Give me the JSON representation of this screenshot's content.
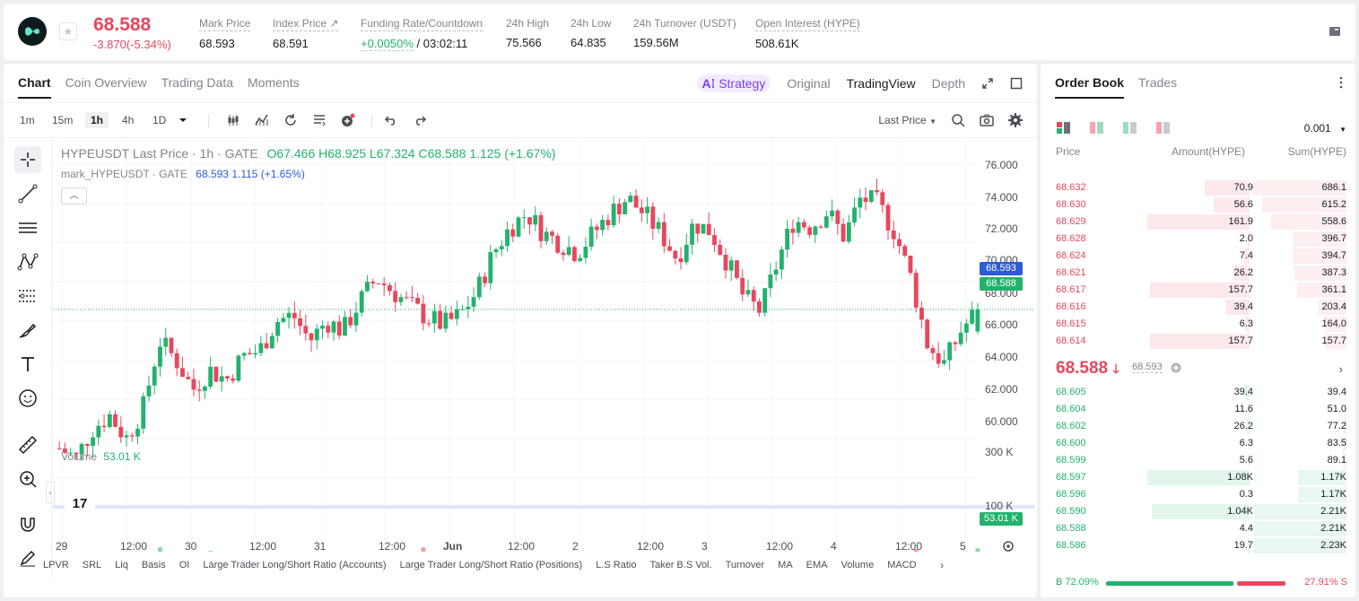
{
  "header": {
    "last_price": "68.588",
    "change": "-3.870(-5.34%)",
    "stats": [
      {
        "label": "Mark Price",
        "value": "68.593"
      },
      {
        "label": "Index Price ↗",
        "value": "68.591"
      },
      {
        "label": "Funding Rate/Countdown",
        "value": "+0.0050%",
        "value2": "/ 03:02:11"
      },
      {
        "label": "24h High",
        "value": "75.566"
      },
      {
        "label": "24h Low",
        "value": "64.835"
      },
      {
        "label": "24h Turnover (USDT)",
        "value": "159.56M"
      },
      {
        "label": "Open Interest (HYPE)",
        "value": "508.61K"
      }
    ]
  },
  "chart_tabs": [
    "Chart",
    "Coin Overview",
    "Trading Data",
    "Moments"
  ],
  "view_tabs": {
    "strategy": "Strategy",
    "original": "Original",
    "tradingview": "TradingView",
    "depth": "Depth"
  },
  "timeframes": [
    "1m",
    "15m",
    "1h",
    "4h",
    "1D"
  ],
  "active_timeframe": "1h",
  "price_type": "Last Price",
  "legend": {
    "symbol": "HYPEUSDT Last Price · 1h · GATE",
    "o": "O67.466",
    "h": "H68.925",
    "l": "L67.324",
    "c": "C68.588",
    "change": "1.125 (+1.67%)",
    "mark_label": "mark_HYPEUSDT · GATE",
    "mark_value": "68.593",
    "mark_change": "1.115 (+1.65%)"
  },
  "volume_legend": {
    "label": "Volume",
    "value": "53.01 K"
  },
  "y_axis": [
    "76.000",
    "74.000",
    "72.000",
    "70.000",
    "68.000",
    "66.000",
    "64.000",
    "62.000",
    "60.000"
  ],
  "vol_axis": [
    "300 K",
    "100 K"
  ],
  "price_tags": {
    "mark": "68.593",
    "last": "68.588",
    "volume": "53.01 K"
  },
  "x_axis": [
    "29",
    "12:00",
    "30",
    "12:00",
    "31",
    "12:00",
    "Jun",
    "12:00",
    "2",
    "12:00",
    "3",
    "12:00",
    "4",
    "12:00",
    "5"
  ],
  "tv_logo": "17",
  "indicators": [
    "LPVR",
    "SRL",
    "Liq",
    "Basis",
    "OI",
    "Large Trader Long/Short Ratio (Accounts)",
    "Large Trader Long/Short Ratio (Positions)",
    "L.S Ratio",
    "Taker B.S Vol.",
    "Turnover",
    "MA",
    "EMA",
    "Volume",
    "MACD"
  ],
  "colors": {
    "up": "#23b26d",
    "down": "#e8475d",
    "mark": "#2d5bd7"
  },
  "chart_data": {
    "type": "candlestick",
    "title": "HYPEUSDT Last Price · 1h · GATE",
    "ylim": [
      58.6,
      77.3
    ],
    "x_labels": [
      "29",
      "12:00",
      "30",
      "12:00",
      "31",
      "12:00",
      "Jun",
      "12:00",
      "2",
      "12:00",
      "3",
      "12:00",
      "4",
      "12:00",
      "5"
    ],
    "close_path": [
      61.5,
      61.0,
      62.5,
      63.2,
      62.0,
      63.5,
      67.0,
      66.0,
      64.5,
      65.5,
      65.0,
      66.2,
      66.5,
      68.0,
      68.3,
      67.0,
      68.0,
      67.5,
      69.0,
      70.2,
      69.5,
      68.8,
      68.2,
      67.8,
      68.3,
      69.5,
      71.5,
      72.8,
      73.5,
      72.5,
      72.0,
      71.5,
      72.5,
      73.5,
      74.3,
      73.5,
      72.5,
      71.2,
      73.0,
      72.6,
      71.0,
      69.2,
      68.5,
      71.0,
      73.2,
      72.8,
      73.6,
      72.3,
      74.3,
      74.0,
      72.6,
      70.2,
      66.8,
      65.8,
      67.5,
      68.588
    ],
    "last_ohlc": {
      "open": 67.466,
      "high": 68.925,
      "low": 67.324,
      "close": 68.588
    },
    "mark_price": 68.593,
    "volume_max_label": "300 K",
    "last_volume": "53.01 K"
  },
  "orderbook": {
    "tabs": [
      "Order Book",
      "Trades"
    ],
    "precision": "0.001",
    "headers": {
      "price": "Price",
      "amount": "Amount(HYPE)",
      "sum": "Sum(HYPE)"
    },
    "asks": [
      {
        "price": "68.632",
        "amount": "70.9",
        "sum": "686.1",
        "a": 0.44,
        "s": 1.0
      },
      {
        "price": "68.630",
        "amount": "56.6",
        "sum": "615.2",
        "a": 0.35,
        "s": 0.9
      },
      {
        "price": "68.629",
        "amount": "161.9",
        "sum": "558.6",
        "a": 1.0,
        "s": 0.81
      },
      {
        "price": "68.628",
        "amount": "2.0",
        "sum": "396.7",
        "a": 0.02,
        "s": 0.58
      },
      {
        "price": "68.624",
        "amount": "7.4",
        "sum": "394.7",
        "a": 0.05,
        "s": 0.58
      },
      {
        "price": "68.621",
        "amount": "26.2",
        "sum": "387.3",
        "a": 0.16,
        "s": 0.56
      },
      {
        "price": "68.617",
        "amount": "157.7",
        "sum": "361.1",
        "a": 0.97,
        "s": 0.53
      },
      {
        "price": "68.616",
        "amount": "39.4",
        "sum": "203.4",
        "a": 0.24,
        "s": 0.3
      },
      {
        "price": "68.615",
        "amount": "6.3",
        "sum": "164.0",
        "a": 0.04,
        "s": 0.24
      },
      {
        "price": "68.614",
        "amount": "157.7",
        "sum": "157.7",
        "a": 0.97,
        "s": 0.23
      }
    ],
    "mid": {
      "price": "68.588",
      "mark": "68.593"
    },
    "bids": [
      {
        "price": "68.605",
        "amount": "39.4",
        "sum": "39.4",
        "a": 0.04,
        "s": 0.02
      },
      {
        "price": "68.604",
        "amount": "11.6",
        "sum": "51.0",
        "a": 0.01,
        "s": 0.02
      },
      {
        "price": "68.602",
        "amount": "26.2",
        "sum": "77.2",
        "a": 0.03,
        "s": 0.03
      },
      {
        "price": "68.600",
        "amount": "6.3",
        "sum": "83.5",
        "a": 0.01,
        "s": 0.04
      },
      {
        "price": "68.599",
        "amount": "5.6",
        "sum": "89.1",
        "a": 0.01,
        "s": 0.04
      },
      {
        "price": "68.597",
        "amount": "1.08K",
        "sum": "1.17K",
        "a": 1.0,
        "s": 0.52
      },
      {
        "price": "68.596",
        "amount": "0.3",
        "sum": "1.17K",
        "a": 0.0,
        "s": 0.52
      },
      {
        "price": "68.590",
        "amount": "1.04K",
        "sum": "2.21K",
        "a": 0.96,
        "s": 0.99
      },
      {
        "price": "68.588",
        "amount": "4.4",
        "sum": "2.21K",
        "a": 0.01,
        "s": 0.99
      },
      {
        "price": "68.586",
        "amount": "19.7",
        "sum": "2.23K",
        "a": 0.02,
        "s": 1.0
      }
    ],
    "buy_ratio": "B 72.09%",
    "sell_ratio": "27.91% S",
    "buy_fraction": 0.7209
  }
}
